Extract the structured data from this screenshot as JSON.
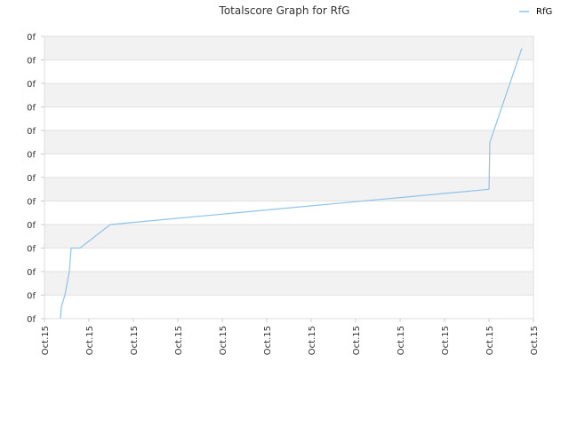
{
  "chart_data": {
    "type": "line",
    "title": "Totalscore Graph for RfG",
    "xlabel": "",
    "ylabel": "",
    "grid": true,
    "legend_position": "top-right",
    "line_color": "#8ec2ea",
    "band_color": "#f2f2f2",
    "y_tick_labels": [
      "0f",
      "0f",
      "0f",
      "0f",
      "0f",
      "0f",
      "0f",
      "0f",
      "0f",
      "0f",
      "0f",
      "0f",
      "0f"
    ],
    "x_tick_labels": [
      "Oct.15",
      "Oct.15",
      "Oct.15",
      "Oct.15",
      "Oct.15",
      "Oct.15",
      "Oct.15",
      "Oct.15",
      "Oct.15",
      "Oct.15",
      "Oct.15",
      "Oct.15"
    ],
    "xlim": [
      0,
      11
    ],
    "ylim": [
      0,
      12
    ],
    "series": [
      {
        "name": "RfG",
        "x": [
          0.36,
          0.38,
          0.46,
          0.56,
          0.6,
          0.8,
          1.48,
          10.0,
          10.02,
          10.74
        ],
        "y": [
          0.0,
          0.5,
          1.0,
          2.0,
          3.0,
          3.0,
          4.0,
          5.5,
          7.5,
          11.5
        ]
      }
    ]
  }
}
